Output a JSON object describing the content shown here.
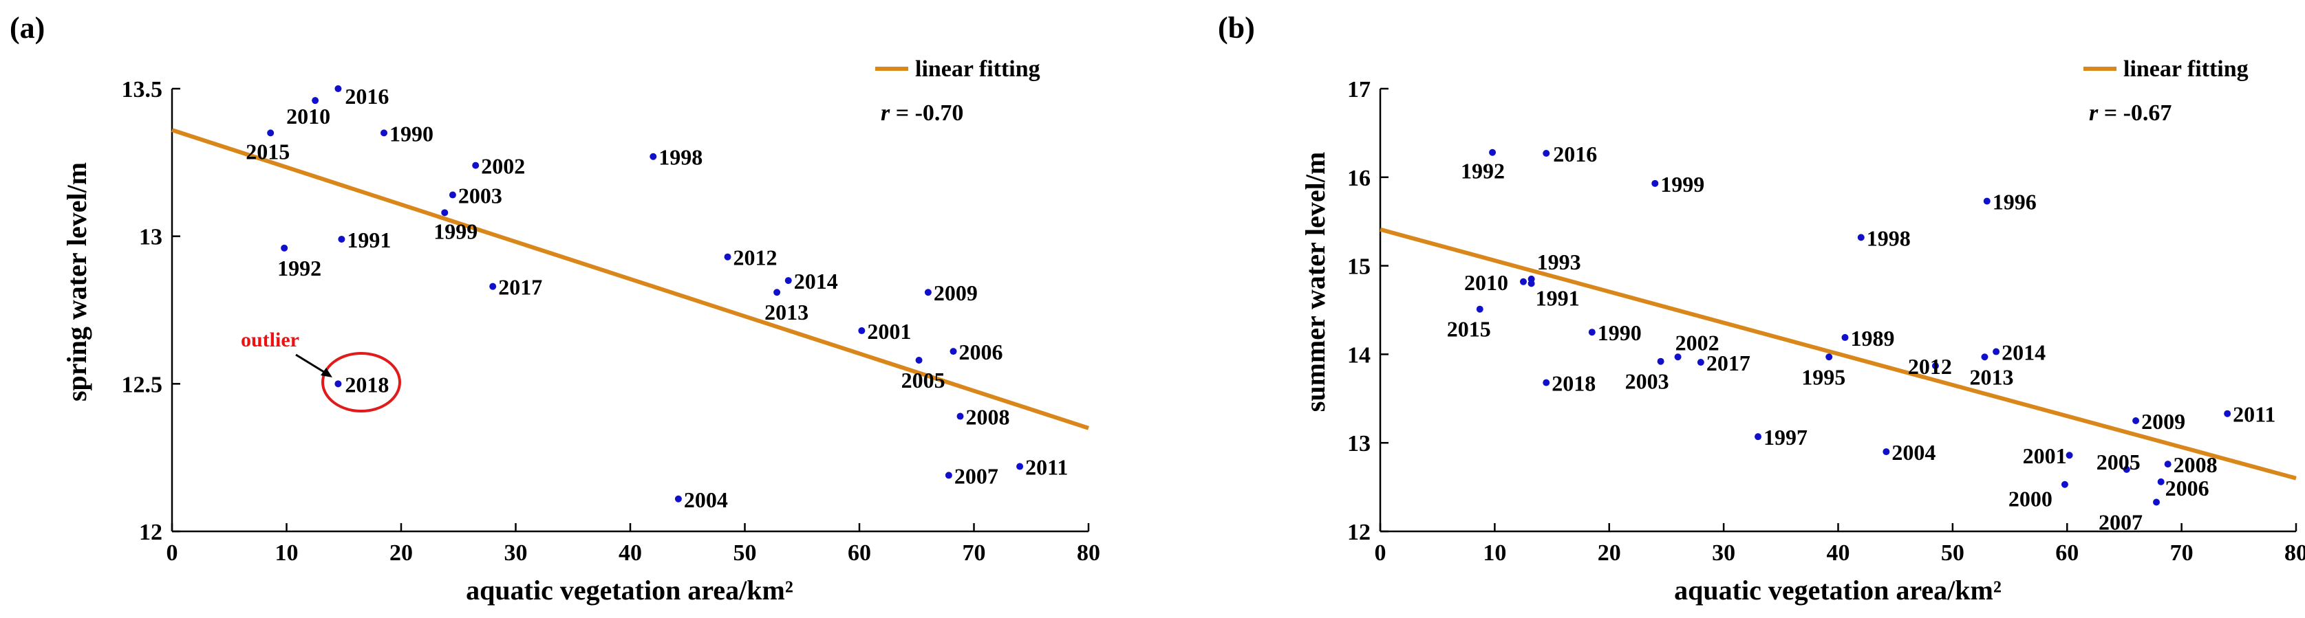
{
  "colors": {
    "fit": "#d9861a",
    "point": "#1010cc",
    "outlier": "#e11b1b",
    "axis": "#000000"
  },
  "chart_data": [
    {
      "type": "scatter",
      "panel": "(a)",
      "xlabel": "aquatic vegetation area/km²",
      "ylabel": "spring water level/m",
      "xlim": [
        0,
        80
      ],
      "ylim": [
        12,
        13.5
      ],
      "xticks": [
        "0",
        "10",
        "20",
        "30",
        "40",
        "50",
        "60",
        "70",
        "80"
      ],
      "yticks": [
        "12",
        "12.5",
        "13",
        "13.5"
      ],
      "legend": "linear fitting",
      "r_label": "r",
      "r_value": " = -0.70",
      "fit": {
        "x0": 0,
        "y0": 13.36,
        "x1": 80,
        "y1": 12.35
      },
      "outlier_label": "outlier",
      "outlier_year": "2018",
      "points": [
        {
          "year": "2016",
          "x": 14.5,
          "y": 13.5
        },
        {
          "year": "2010",
          "x": 12.5,
          "y": 13.46
        },
        {
          "year": "2015",
          "x": 8.6,
          "y": 13.35
        },
        {
          "year": "1990",
          "x": 18.5,
          "y": 13.35
        },
        {
          "year": "2002",
          "x": 26.5,
          "y": 13.24
        },
        {
          "year": "2003",
          "x": 24.5,
          "y": 13.14
        },
        {
          "year": "1999",
          "x": 23.8,
          "y": 13.08
        },
        {
          "year": "1998",
          "x": 42.0,
          "y": 13.27
        },
        {
          "year": "1991",
          "x": 14.8,
          "y": 12.99
        },
        {
          "year": "1992",
          "x": 9.8,
          "y": 12.96
        },
        {
          "year": "2017",
          "x": 28.0,
          "y": 12.83
        },
        {
          "year": "2012",
          "x": 48.5,
          "y": 12.93
        },
        {
          "year": "2014",
          "x": 53.8,
          "y": 12.85
        },
        {
          "year": "2013",
          "x": 52.8,
          "y": 12.81
        },
        {
          "year": "2009",
          "x": 66.0,
          "y": 12.81
        },
        {
          "year": "2001",
          "x": 60.2,
          "y": 12.68
        },
        {
          "year": "2006",
          "x": 68.2,
          "y": 12.61
        },
        {
          "year": "2005",
          "x": 65.2,
          "y": 12.58
        },
        {
          "year": "2018",
          "x": 14.5,
          "y": 12.5
        },
        {
          "year": "2008",
          "x": 68.8,
          "y": 12.39
        },
        {
          "year": "2011",
          "x": 74.0,
          "y": 12.22
        },
        {
          "year": "2007",
          "x": 67.8,
          "y": 12.19
        },
        {
          "year": "2004",
          "x": 44.2,
          "y": 12.11
        }
      ]
    },
    {
      "type": "scatter",
      "panel": "(b)",
      "xlabel": "aquatic vegetation area/km²",
      "ylabel": "summer water level/m",
      "xlim": [
        0,
        80
      ],
      "ylim": [
        12,
        17
      ],
      "xticks": [
        "0",
        "10",
        "20",
        "30",
        "40",
        "50",
        "60",
        "70",
        "80"
      ],
      "yticks": [
        "12",
        "13",
        "14",
        "15",
        "16",
        "17"
      ],
      "legend": "linear fitting",
      "r_label": "r",
      "r_value": " = -0.67",
      "fit": {
        "x0": 0,
        "y0": 15.41,
        "x1": 80,
        "y1": 12.6
      },
      "points": [
        {
          "year": "1992",
          "x": 9.8,
          "y": 16.28
        },
        {
          "year": "2016",
          "x": 14.5,
          "y": 16.27
        },
        {
          "year": "1999",
          "x": 24.0,
          "y": 15.93
        },
        {
          "year": "1996",
          "x": 53.0,
          "y": 15.73
        },
        {
          "year": "1998",
          "x": 42.0,
          "y": 15.32
        },
        {
          "year": "1993",
          "x": 13.2,
          "y": 14.85
        },
        {
          "year": "2010",
          "x": 12.5,
          "y": 14.82
        },
        {
          "year": "1991",
          "x": 13.2,
          "y": 14.8
        },
        {
          "year": "2015",
          "x": 8.7,
          "y": 14.51
        },
        {
          "year": "1990",
          "x": 18.5,
          "y": 14.25
        },
        {
          "year": "1989",
          "x": 40.6,
          "y": 14.19
        },
        {
          "year": "2002",
          "x": 26.0,
          "y": 13.97
        },
        {
          "year": "2014",
          "x": 53.8,
          "y": 14.03
        },
        {
          "year": "2012",
          "x": 48.5,
          "y": 13.87
        },
        {
          "year": "2013",
          "x": 52.8,
          "y": 13.97
        },
        {
          "year": "1995",
          "x": 39.2,
          "y": 13.97
        },
        {
          "year": "2003",
          "x": 24.5,
          "y": 13.92
        },
        {
          "year": "2017",
          "x": 28.0,
          "y": 13.91
        },
        {
          "year": "2018",
          "x": 14.5,
          "y": 13.68
        },
        {
          "year": "2009",
          "x": 66.0,
          "y": 13.25
        },
        {
          "year": "2011",
          "x": 74.0,
          "y": 13.33
        },
        {
          "year": "1997",
          "x": 33.0,
          "y": 13.07
        },
        {
          "year": "2004",
          "x": 44.2,
          "y": 12.9
        },
        {
          "year": "2001",
          "x": 60.2,
          "y": 12.86
        },
        {
          "year": "2005",
          "x": 65.2,
          "y": 12.7
        },
        {
          "year": "2008",
          "x": 68.8,
          "y": 12.76
        },
        {
          "year": "2000",
          "x": 59.8,
          "y": 12.53
        },
        {
          "year": "2006",
          "x": 68.2,
          "y": 12.56
        },
        {
          "year": "2007",
          "x": 67.8,
          "y": 12.33
        }
      ]
    }
  ]
}
